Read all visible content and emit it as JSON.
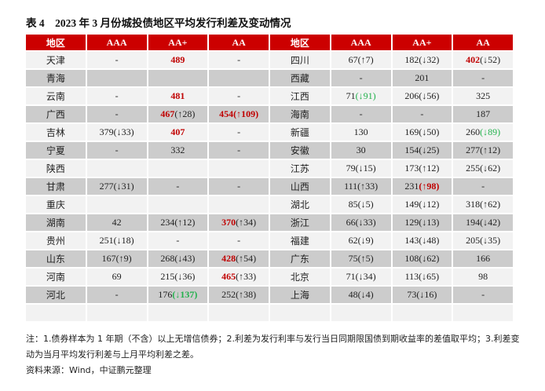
{
  "title": "表 4　2023 年 3 月份城投债地区平均发行利差及变动情况",
  "headers": [
    "地区",
    "AAA",
    "AA+",
    "AA",
    "地区",
    "AAA",
    "AA+",
    "AA"
  ],
  "colors": {
    "header_bg": "#cc0000",
    "row_light": "#f2f2f2",
    "row_dark": "#cccccc",
    "highlight_red": "#c00000",
    "highlight_green": "#22b14c"
  },
  "left_rows": [
    {
      "region": "天津",
      "cells": [
        [
          {
            "t": "-"
          }
        ],
        [
          {
            "t": "489",
            "s": "red"
          }
        ],
        [
          {
            "t": "-"
          }
        ]
      ]
    },
    {
      "region": "青海",
      "cells": [
        [],
        [],
        []
      ]
    },
    {
      "region": "云南",
      "cells": [
        [
          {
            "t": "-"
          }
        ],
        [
          {
            "t": "481",
            "s": "red"
          }
        ],
        [
          {
            "t": "-"
          }
        ]
      ]
    },
    {
      "region": "广西",
      "cells": [
        [
          {
            "t": "-"
          }
        ],
        [
          {
            "t": "467",
            "s": "red"
          },
          {
            "t": "(↑28)"
          }
        ],
        [
          {
            "t": "454(↑109)",
            "s": "red"
          }
        ]
      ]
    },
    {
      "region": "吉林",
      "cells": [
        [
          {
            "t": "379(↓33)"
          }
        ],
        [
          {
            "t": "407",
            "s": "red"
          }
        ],
        [
          {
            "t": "-"
          }
        ]
      ]
    },
    {
      "region": "宁夏",
      "cells": [
        [
          {
            "t": "-"
          }
        ],
        [
          {
            "t": "332"
          }
        ],
        [
          {
            "t": "-"
          }
        ]
      ]
    },
    {
      "region": "陕西",
      "cells": [
        [],
        [],
        []
      ]
    },
    {
      "region": "甘肃",
      "cells": [
        [
          {
            "t": "277(↓31)"
          }
        ],
        [
          {
            "t": "-"
          }
        ],
        [
          {
            "t": "-"
          }
        ]
      ]
    },
    {
      "region": "重庆",
      "cells": [
        [],
        [],
        []
      ]
    },
    {
      "region": "湖南",
      "cells": [
        [
          {
            "t": "42"
          }
        ],
        [
          {
            "t": "234(↑12)"
          }
        ],
        [
          {
            "t": "370",
            "s": "red"
          },
          {
            "t": "(↑34)"
          }
        ]
      ]
    },
    {
      "region": "贵州",
      "cells": [
        [
          {
            "t": "251(↓18)"
          }
        ],
        [
          {
            "t": "-"
          }
        ],
        [
          {
            "t": "-"
          }
        ]
      ]
    },
    {
      "region": "山东",
      "cells": [
        [
          {
            "t": "167(↑9)"
          }
        ],
        [
          {
            "t": "268(↓43)"
          }
        ],
        [
          {
            "t": "428",
            "s": "red"
          },
          {
            "t": "(↑54)"
          }
        ]
      ]
    },
    {
      "region": "河南",
      "cells": [
        [
          {
            "t": "69"
          }
        ],
        [
          {
            "t": "215(↓36)"
          }
        ],
        [
          {
            "t": "465",
            "s": "red"
          },
          {
            "t": "(↑33)"
          }
        ]
      ]
    },
    {
      "region": "河北",
      "cells": [
        [
          {
            "t": "-"
          }
        ],
        [
          {
            "t": "176"
          },
          {
            "t": "(↓137)",
            "s": "green-bold"
          }
        ],
        [
          {
            "t": "252(↑38)"
          }
        ]
      ]
    },
    {
      "region": "",
      "cells": [
        [],
        [],
        []
      ]
    }
  ],
  "right_rows": [
    {
      "region": "四川",
      "cells": [
        [
          {
            "t": "67(↑7)"
          }
        ],
        [
          {
            "t": "182(↓32)"
          }
        ],
        [
          {
            "t": "402",
            "s": "red"
          },
          {
            "t": "(↓52)"
          }
        ]
      ]
    },
    {
      "region": "西藏",
      "cells": [
        [
          {
            "t": "-"
          }
        ],
        [
          {
            "t": "201"
          }
        ],
        [
          {
            "t": "-"
          }
        ]
      ]
    },
    {
      "region": "江西",
      "cells": [
        [
          {
            "t": "71"
          },
          {
            "t": "(↓91)",
            "s": "green"
          }
        ],
        [
          {
            "t": "206(↓56)"
          }
        ],
        [
          {
            "t": "325"
          }
        ]
      ]
    },
    {
      "region": "海南",
      "cells": [
        [
          {
            "t": "-"
          }
        ],
        [
          {
            "t": "-"
          }
        ],
        [
          {
            "t": "187"
          }
        ]
      ]
    },
    {
      "region": "新疆",
      "cells": [
        [
          {
            "t": "130"
          }
        ],
        [
          {
            "t": "169(↓50)"
          }
        ],
        [
          {
            "t": "260"
          },
          {
            "t": "(↓89)",
            "s": "green"
          }
        ]
      ]
    },
    {
      "region": "安徽",
      "cells": [
        [
          {
            "t": "30"
          }
        ],
        [
          {
            "t": "154(↓25)"
          }
        ],
        [
          {
            "t": "277(↑12)"
          }
        ]
      ]
    },
    {
      "region": "江苏",
      "cells": [
        [
          {
            "t": "79(↓15)"
          }
        ],
        [
          {
            "t": "173(↑12)"
          }
        ],
        [
          {
            "t": "255(↓62)"
          }
        ]
      ]
    },
    {
      "region": "山西",
      "cells": [
        [
          {
            "t": "111(↑33)"
          }
        ],
        [
          {
            "t": "231"
          },
          {
            "t": "(↑98)",
            "s": "red"
          }
        ],
        [
          {
            "t": "-"
          }
        ]
      ]
    },
    {
      "region": "湖北",
      "cells": [
        [
          {
            "t": "85(↓5)"
          }
        ],
        [
          {
            "t": "149(↓12)"
          }
        ],
        [
          {
            "t": "318(↑62)"
          }
        ]
      ]
    },
    {
      "region": "浙江",
      "cells": [
        [
          {
            "t": "66(↓33)"
          }
        ],
        [
          {
            "t": "129(↓13)"
          }
        ],
        [
          {
            "t": "194(↓42)"
          }
        ]
      ]
    },
    {
      "region": "福建",
      "cells": [
        [
          {
            "t": "62(↓9)"
          }
        ],
        [
          {
            "t": "143(↓48)"
          }
        ],
        [
          {
            "t": "205(↓35)"
          }
        ]
      ]
    },
    {
      "region": "广东",
      "cells": [
        [
          {
            "t": "75(↑5)"
          }
        ],
        [
          {
            "t": "108(↓62)"
          }
        ],
        [
          {
            "t": "166"
          }
        ]
      ]
    },
    {
      "region": "北京",
      "cells": [
        [
          {
            "t": "71(↓34)"
          }
        ],
        [
          {
            "t": "113(↓65)"
          }
        ],
        [
          {
            "t": "98"
          }
        ]
      ]
    },
    {
      "region": "上海",
      "cells": [
        [
          {
            "t": "48(↓4)"
          }
        ],
        [
          {
            "t": "73(↓16)"
          }
        ],
        [
          {
            "t": "-"
          }
        ]
      ]
    },
    {
      "region": "",
      "cells": [
        [],
        [],
        []
      ]
    }
  ],
  "note": "注：1.债券样本为 1 年期（不含）以上无增信债券；2.利差为发行利率与发行当日同期限国债到期收益率的差值取平均；3.利差变动为当月平均发行利差与上月平均利差之差。",
  "source": "资料来源：Wind，中证鹏元整理"
}
